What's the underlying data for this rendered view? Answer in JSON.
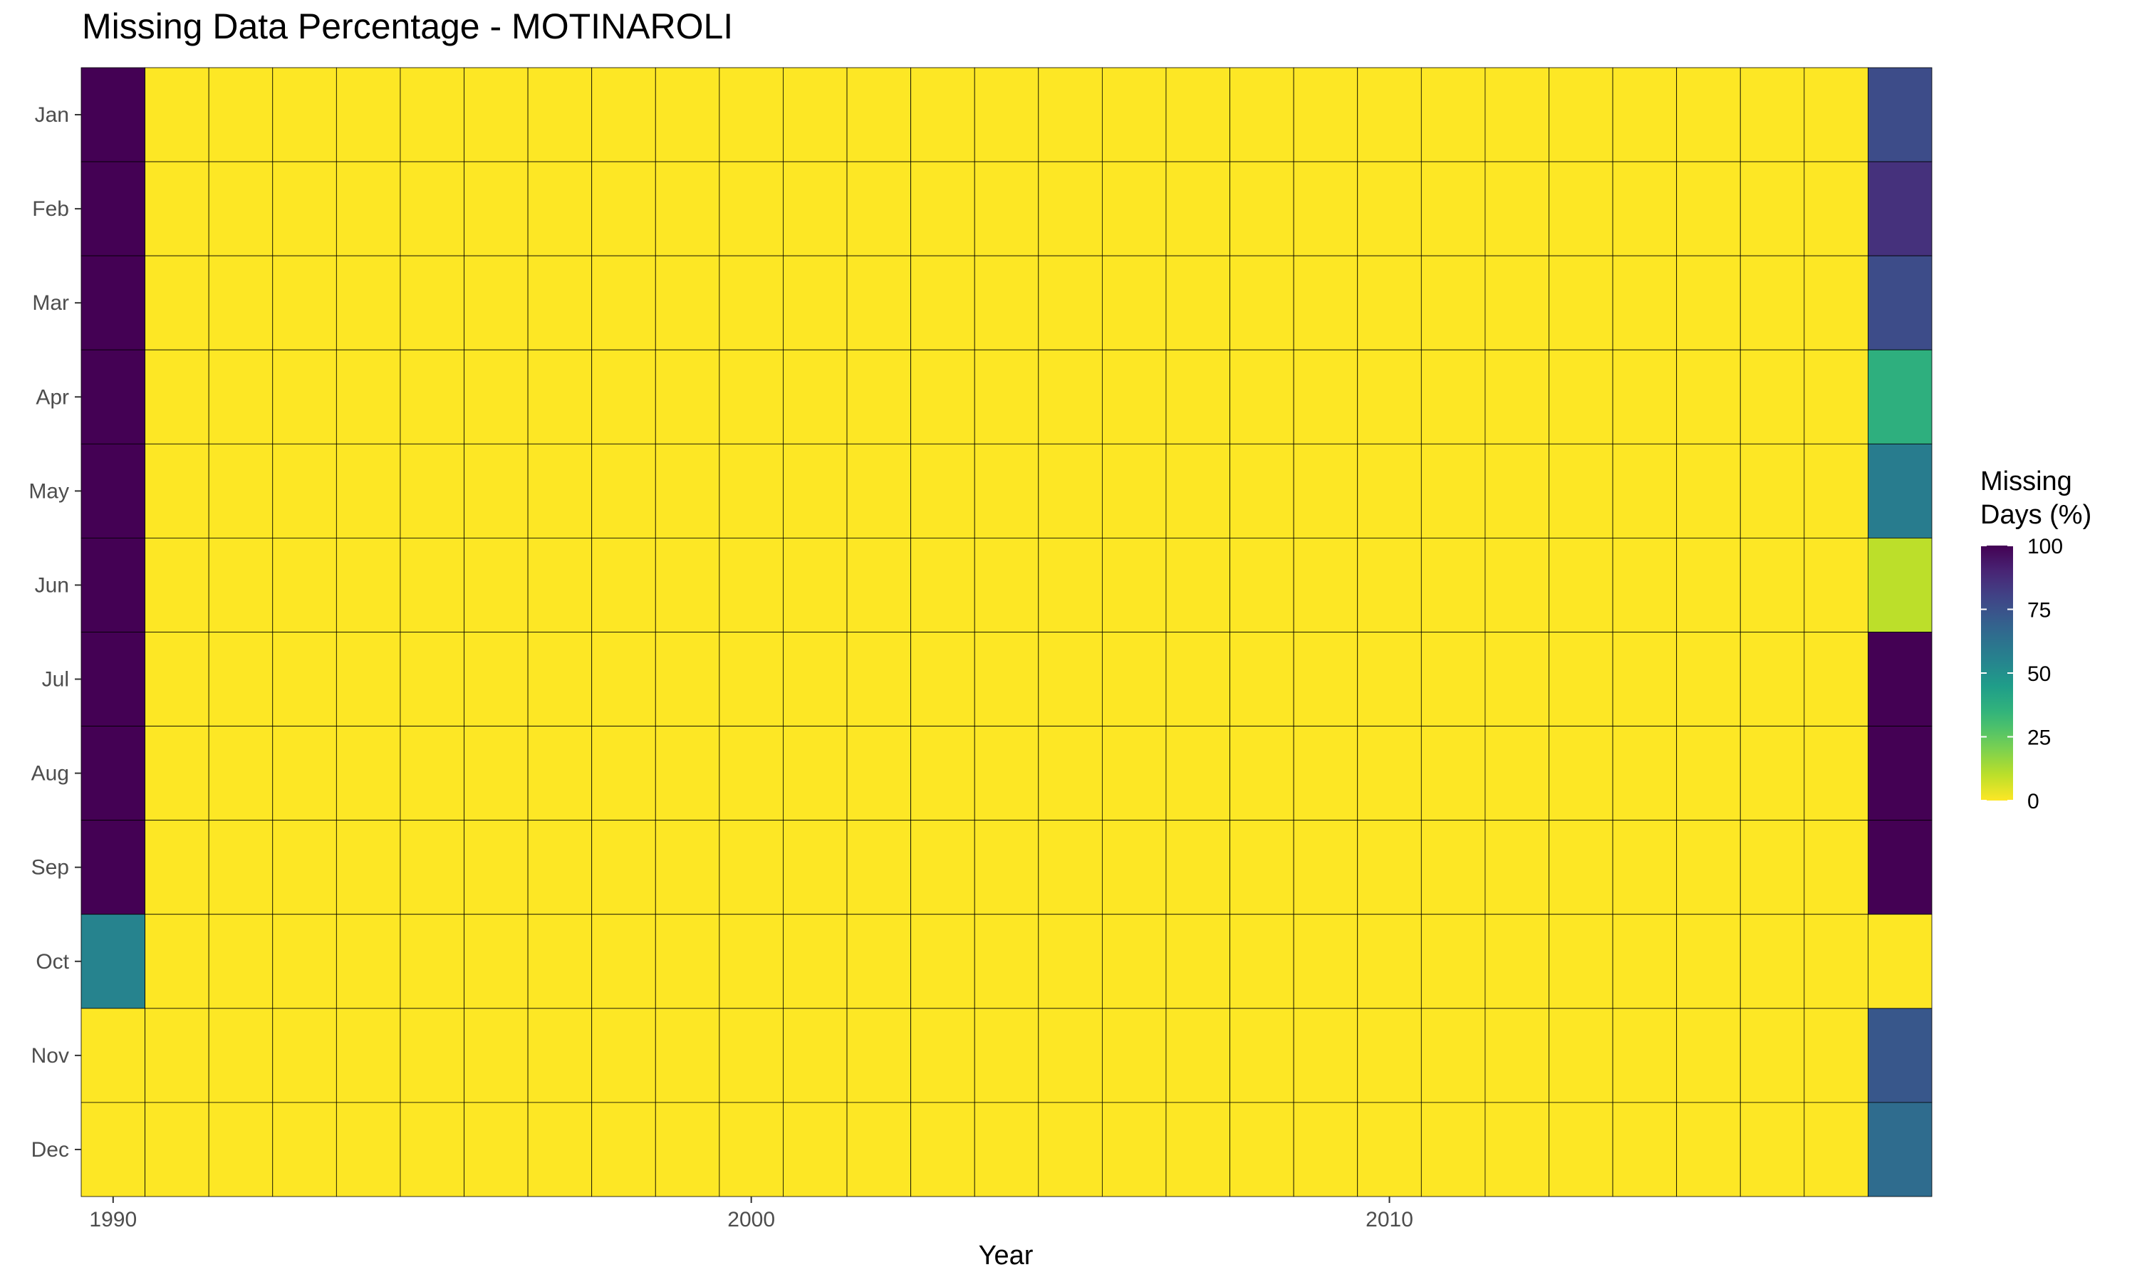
{
  "chart_data": {
    "type": "heatmap",
    "title": "Missing Data Percentage - MOTINAROLI",
    "xlabel": "Year",
    "ylabel": "",
    "x_tick_labels": [
      "1990",
      "2000",
      "2010"
    ],
    "x_tick_values": [
      1990,
      2000,
      2010
    ],
    "years": [
      1990,
      1991,
      1992,
      1993,
      1994,
      1995,
      1996,
      1997,
      1998,
      1999,
      2000,
      2001,
      2002,
      2003,
      2004,
      2005,
      2006,
      2007,
      2008,
      2009,
      2010,
      2011,
      2012,
      2013,
      2014,
      2015,
      2016,
      2017,
      2018
    ],
    "months": [
      "Jan",
      "Feb",
      "Mar",
      "Apr",
      "May",
      "Jun",
      "Jul",
      "Aug",
      "Sep",
      "Oct",
      "Nov",
      "Dec"
    ],
    "zlim": [
      0,
      100
    ],
    "colorscale": "viridis (reversed: 0 = yellow, 100 = dark purple)",
    "legend": {
      "title_line1": "Missing",
      "title_line2": "Days (%)",
      "ticks": [
        "100",
        "75",
        "50",
        "25",
        "0"
      ],
      "tick_values": [
        100,
        75,
        50,
        25,
        0
      ],
      "position": "right"
    },
    "nonzero_cells": [
      {
        "year": 1990,
        "month": "Jan",
        "value": 100
      },
      {
        "year": 1990,
        "month": "Feb",
        "value": 100
      },
      {
        "year": 1990,
        "month": "Mar",
        "value": 100
      },
      {
        "year": 1990,
        "month": "Apr",
        "value": 100
      },
      {
        "year": 1990,
        "month": "May",
        "value": 100
      },
      {
        "year": 1990,
        "month": "Jun",
        "value": 100
      },
      {
        "year": 1990,
        "month": "Jul",
        "value": 100
      },
      {
        "year": 1990,
        "month": "Aug",
        "value": 100
      },
      {
        "year": 1990,
        "month": "Sep",
        "value": 100
      },
      {
        "year": 1990,
        "month": "Oct",
        "value": 55
      },
      {
        "year": 2018,
        "month": "Jan",
        "value": 77
      },
      {
        "year": 2018,
        "month": "Feb",
        "value": 86
      },
      {
        "year": 2018,
        "month": "Mar",
        "value": 77
      },
      {
        "year": 2018,
        "month": "Apr",
        "value": 37
      },
      {
        "year": 2018,
        "month": "May",
        "value": 58
      },
      {
        "year": 2018,
        "month": "Jun",
        "value": 10
      },
      {
        "year": 2018,
        "month": "Jul",
        "value": 100
      },
      {
        "year": 2018,
        "month": "Aug",
        "value": 100
      },
      {
        "year": 2018,
        "month": "Sep",
        "value": 100
      },
      {
        "year": 2018,
        "month": "Oct",
        "value": 0
      },
      {
        "year": 2018,
        "month": "Nov",
        "value": 73
      },
      {
        "year": 2018,
        "month": "Dec",
        "value": 65
      }
    ],
    "default_value": 0,
    "grid": false
  }
}
